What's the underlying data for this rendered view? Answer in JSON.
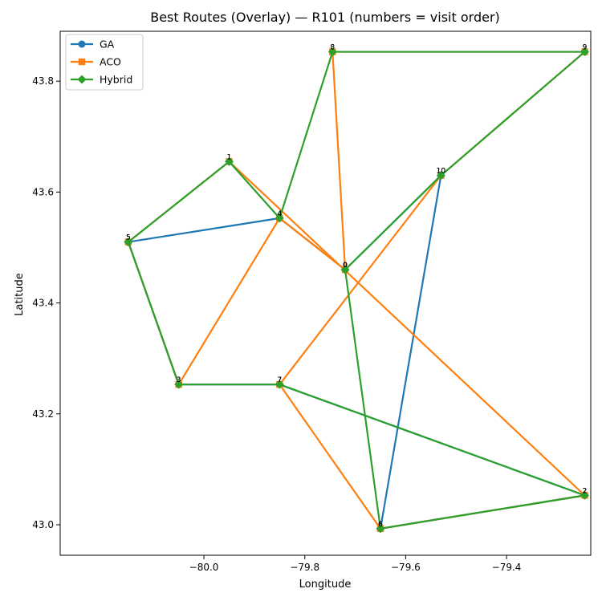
{
  "chart_data": {
    "type": "line",
    "title": "Best Routes (Overlay) — R101 (numbers = visit order)",
    "xlabel": "Longitude",
    "ylabel": "Latitude",
    "xlim": [
      -80.285,
      -79.233
    ],
    "ylim": [
      42.945,
      43.89
    ],
    "xticks": [
      -80.0,
      -79.8,
      -79.6,
      -79.4
    ],
    "xtick_labels": [
      "−80.0",
      "−79.8",
      "−79.6",
      "−79.4"
    ],
    "yticks": [
      43.0,
      43.2,
      43.4,
      43.6,
      43.8
    ],
    "ytick_labels": [
      "43.0",
      "43.2",
      "43.4",
      "43.6",
      "43.8"
    ],
    "grid": false,
    "legend_position": "top-left",
    "nodes": [
      {
        "id": 0,
        "x": -79.72,
        "y": 43.46
      },
      {
        "id": 1,
        "x": -79.95,
        "y": 43.655
      },
      {
        "id": 2,
        "x": -79.245,
        "y": 43.053
      },
      {
        "id": 3,
        "x": -80.05,
        "y": 43.253
      },
      {
        "id": 4,
        "x": -79.85,
        "y": 43.553
      },
      {
        "id": 5,
        "x": -80.15,
        "y": 43.51
      },
      {
        "id": 6,
        "x": -79.65,
        "y": 42.993
      },
      {
        "id": 7,
        "x": -79.85,
        "y": 43.253
      },
      {
        "id": 8,
        "x": -79.745,
        "y": 43.853
      },
      {
        "id": 9,
        "x": -79.245,
        "y": 43.853
      },
      {
        "id": 10,
        "x": -79.53,
        "y": 43.63
      }
    ],
    "series": [
      {
        "name": "GA",
        "color": "#1f77b4",
        "marker": "circle",
        "route": [
          0,
          10,
          6,
          2,
          7,
          3,
          5,
          4,
          0
        ],
        "visit_labels": [
          "0",
          "10",
          "6",
          "2",
          "7",
          "3",
          "5",
          "4",
          "0"
        ]
      },
      {
        "name": "ACO",
        "color": "#ff7f0e",
        "marker": "square",
        "route": [
          0,
          8,
          9,
          10,
          7,
          6,
          2,
          1,
          5,
          3,
          4,
          0
        ],
        "visit_labels": [
          "0",
          "8",
          "9",
          "10",
          "7",
          "6",
          "2",
          "1",
          "5",
          "3",
          "4",
          "0"
        ]
      },
      {
        "name": "Hybrid",
        "color": "#2ca02c",
        "marker": "diamond",
        "route": [
          0,
          10,
          9,
          8,
          4,
          1,
          5,
          3,
          7,
          2,
          6,
          0
        ],
        "visit_labels": [
          "0",
          "10",
          "9",
          "8",
          "4",
          "1",
          "5",
          "3",
          "7",
          "2",
          "6",
          "0"
        ]
      }
    ],
    "gaps": [
      {
        "series": "GA",
        "from": 4,
        "to": 1,
        "route": [
          4,
          1,
          8,
          9
        ]
      }
    ]
  }
}
